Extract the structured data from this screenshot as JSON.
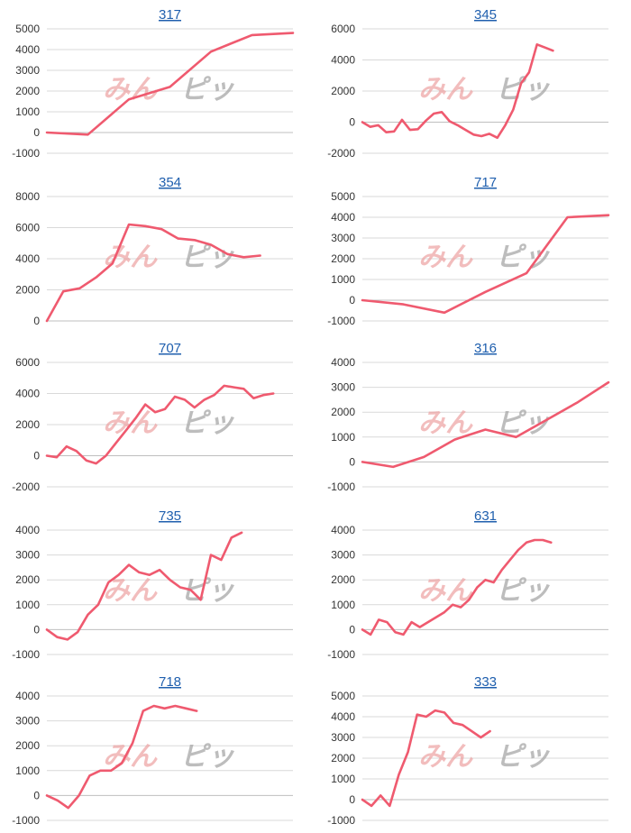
{
  "watermark": {
    "part_a": "みん",
    "part_b": "ピッ",
    "color_a": "#ec9b9b",
    "color_b": "#a7a7a7"
  },
  "colors": {
    "series": "#ef5a6f",
    "title": "#1f5fae",
    "grid": "#d9d9d9"
  },
  "chart_data": [
    {
      "type": "line",
      "title": "317",
      "ylim": [
        -1000,
        5000
      ],
      "yticks": [
        -1000,
        0,
        1000,
        2000,
        3000,
        4000,
        5000
      ],
      "grid": true,
      "x": [
        0,
        1,
        2,
        3,
        4,
        5,
        6
      ],
      "values": [
        0,
        -100,
        1600,
        2200,
        3900,
        4700,
        4800
      ]
    },
    {
      "type": "line",
      "title": "345",
      "ylim": [
        -2000,
        6000
      ],
      "yticks": [
        -2000,
        0,
        2000,
        4000,
        6000
      ],
      "grid": true,
      "x": [
        0,
        1,
        2,
        3,
        4,
        5,
        6,
        7,
        8,
        9,
        10,
        11,
        12,
        13,
        14,
        15,
        16,
        17,
        18,
        19,
        20,
        21,
        22,
        23,
        24,
        25,
        26,
        27,
        28,
        29,
        30,
        31
      ],
      "values": [
        0,
        -300,
        -200,
        -650,
        -600,
        150,
        -500,
        -450,
        100,
        550,
        650,
        50,
        -200,
        -500,
        -800,
        -900,
        -750,
        -1000,
        -200,
        800,
        2500,
        3200,
        5000,
        4800,
        4600,
        null,
        null,
        null,
        null,
        null,
        null,
        null
      ]
    },
    {
      "type": "line",
      "title": "354",
      "ylim": [
        0,
        8000
      ],
      "yticks": [
        0,
        2000,
        4000,
        6000,
        8000
      ],
      "grid": true,
      "x": [
        0,
        1,
        2,
        3,
        4,
        5,
        6,
        7,
        8,
        9,
        10,
        11,
        12,
        13,
        14,
        15
      ],
      "values": [
        0,
        1900,
        2100,
        2800,
        3700,
        6200,
        6100,
        5900,
        5300,
        5200,
        4900,
        4300,
        4100,
        4200,
        null,
        null
      ]
    },
    {
      "type": "line",
      "title": "717",
      "ylim": [
        -1000,
        5000
      ],
      "yticks": [
        -1000,
        0,
        1000,
        2000,
        3000,
        4000,
        5000
      ],
      "grid": true,
      "x": [
        0,
        1,
        2,
        3,
        4,
        5,
        6
      ],
      "values": [
        0,
        -200,
        -600,
        400,
        1300,
        4000,
        4100
      ]
    },
    {
      "type": "line",
      "title": "707",
      "ylim": [
        -2000,
        6000
      ],
      "yticks": [
        -2000,
        0,
        2000,
        4000,
        6000
      ],
      "grid": true,
      "x": [
        0,
        1,
        2,
        3,
        4,
        5,
        6,
        7,
        8,
        9,
        10,
        11,
        12,
        13,
        14,
        15,
        16,
        17,
        18,
        19,
        20,
        21,
        22,
        23,
        24,
        25
      ],
      "values": [
        0,
        -100,
        600,
        300,
        -300,
        -500,
        0,
        800,
        1600,
        2400,
        3300,
        2800,
        3000,
        3800,
        3600,
        3100,
        3600,
        3900,
        4500,
        4400,
        4300,
        3700,
        3900,
        4000,
        null,
        null
      ]
    },
    {
      "type": "line",
      "title": "316",
      "ylim": [
        -1000,
        4000
      ],
      "yticks": [
        -1000,
        0,
        1000,
        2000,
        3000,
        4000
      ],
      "grid": true,
      "x": [
        0,
        1,
        2,
        3,
        4,
        5,
        6,
        7,
        8
      ],
      "values": [
        0,
        -200,
        200,
        900,
        1300,
        1000,
        1700,
        2400,
        3200
      ]
    },
    {
      "type": "line",
      "title": "735",
      "ylim": [
        -1000,
        4000
      ],
      "yticks": [
        -1000,
        0,
        1000,
        2000,
        3000,
        4000
      ],
      "grid": true,
      "x": [
        0,
        1,
        2,
        3,
        4,
        5,
        6,
        7,
        8,
        9,
        10,
        11,
        12,
        13,
        14,
        15,
        16,
        17,
        18,
        19,
        20,
        21,
        22,
        23,
        24
      ],
      "values": [
        0,
        -300,
        -400,
        -100,
        600,
        1000,
        1900,
        2200,
        2600,
        2300,
        2200,
        2400,
        2000,
        1700,
        1600,
        1200,
        3000,
        2800,
        3700,
        3900,
        null,
        null,
        null,
        null,
        null
      ]
    },
    {
      "type": "line",
      "title": "631",
      "ylim": [
        -1000,
        4000
      ],
      "yticks": [
        -1000,
        0,
        1000,
        2000,
        3000,
        4000
      ],
      "grid": true,
      "x": [
        0,
        1,
        2,
        3,
        4,
        5,
        6,
        7,
        8,
        9,
        10,
        11,
        12,
        13,
        14,
        15,
        16,
        17,
        18,
        19,
        20,
        21,
        22,
        23,
        24,
        25,
        26,
        27,
        28,
        29,
        30
      ],
      "values": [
        0,
        -200,
        400,
        300,
        -100,
        -200,
        300,
        100,
        300,
        500,
        700,
        1000,
        900,
        1200,
        1700,
        2000,
        1900,
        2400,
        2800,
        3200,
        3500,
        3600,
        3600,
        3500,
        null,
        null,
        null,
        null,
        null,
        null,
        null
      ]
    },
    {
      "type": "line",
      "title": "718",
      "ylim": [
        -1000,
        4000
      ],
      "yticks": [
        -1000,
        0,
        1000,
        2000,
        3000,
        4000
      ],
      "grid": true,
      "x": [
        0,
        1,
        2,
        3,
        4,
        5,
        6,
        7,
        8,
        9,
        10,
        11,
        12,
        13,
        14,
        15,
        16,
        17,
        18,
        19,
        20,
        21,
        22,
        23
      ],
      "values": [
        0,
        -200,
        -500,
        0,
        800,
        1000,
        1000,
        1300,
        2100,
        3400,
        3600,
        3500,
        3600,
        3500,
        3400,
        null,
        null,
        null,
        null,
        null,
        null,
        null,
        null,
        null
      ]
    },
    {
      "type": "line",
      "title": "333",
      "ylim": [
        -1000,
        5000
      ],
      "yticks": [
        -1000,
        0,
        1000,
        2000,
        3000,
        4000,
        5000
      ],
      "grid": true,
      "x": [
        0,
        1,
        2,
        3,
        4,
        5,
        6,
        7,
        8,
        9,
        10,
        11,
        12,
        13,
        14,
        15,
        16,
        17,
        18,
        19,
        20,
        21,
        22,
        23,
        24,
        25,
        26,
        27
      ],
      "values": [
        0,
        -300,
        200,
        -300,
        1200,
        2300,
        4100,
        4000,
        4300,
        4200,
        3700,
        3600,
        3300,
        3000,
        3300,
        null,
        null,
        null,
        null,
        null,
        null,
        null,
        null,
        null,
        null,
        null,
        null,
        null
      ]
    }
  ]
}
